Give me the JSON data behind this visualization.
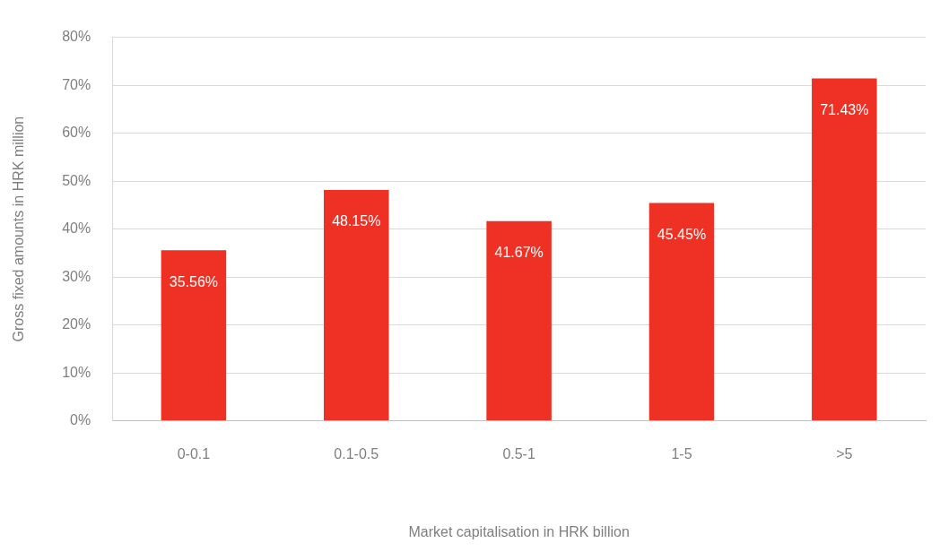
{
  "chart_data": {
    "type": "bar",
    "xlabel": "Market capitalisation in HRK billion",
    "ylabel": "Gross fixed amounts in HRK million",
    "categories": [
      "0-0.1",
      "0.1-0.5",
      "0.5-1",
      "1-5",
      ">5"
    ],
    "values": [
      35.56,
      48.15,
      41.67,
      45.45,
      71.43
    ],
    "value_labels": [
      "35.56%",
      "48.15%",
      "41.67%",
      "45.45%",
      "71.43%"
    ],
    "color": "#ee3124",
    "ylim": [
      0,
      80
    ],
    "yticks": [
      {
        "value": 0,
        "label": "0%"
      },
      {
        "value": 10,
        "label": "10%"
      },
      {
        "value": 20,
        "label": "20%"
      },
      {
        "value": 30,
        "label": "30%"
      },
      {
        "value": 40,
        "label": "40%"
      },
      {
        "value": 50,
        "label": "50%"
      },
      {
        "value": 60,
        "label": "60%"
      },
      {
        "value": 70,
        "label": "70%"
      },
      {
        "value": 80,
        "label": "80%"
      }
    ],
    "grid": "y",
    "legend": false
  }
}
